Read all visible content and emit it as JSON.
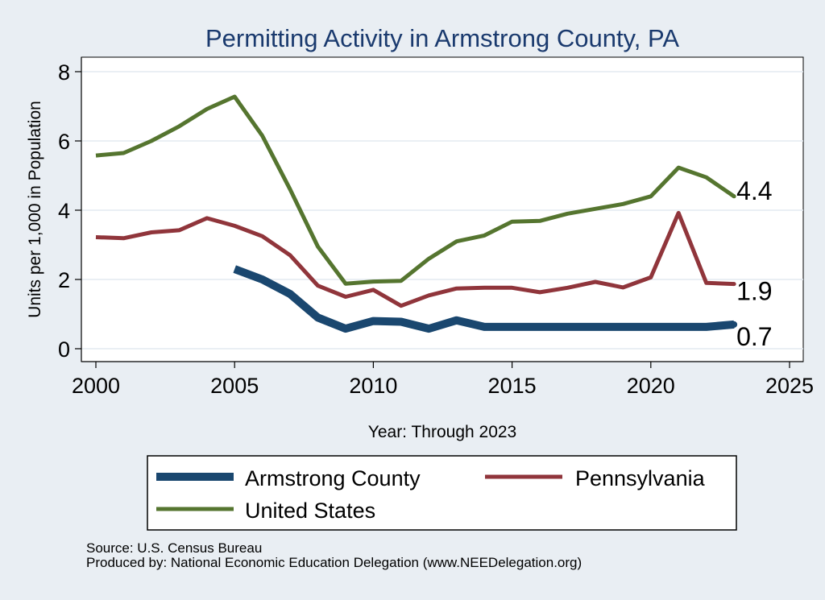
{
  "chart_data": {
    "type": "line",
    "title": "Permitting Activity in Armstrong County, PA",
    "xlabel": "Year: Through 2023",
    "ylabel": "Units per 1,000 in Population",
    "xlim": [
      2000,
      2025
    ],
    "ylim": [
      0,
      8
    ],
    "xticks": [
      2000,
      2005,
      2010,
      2015,
      2020,
      2025
    ],
    "yticks": [
      0,
      2,
      4,
      6,
      8
    ],
    "grid": true,
    "legend_position": "bottom",
    "series": [
      {
        "name": "Armstrong County",
        "color": "#1a476f",
        "x": [
          2005,
          2006,
          2007,
          2008,
          2009,
          2010,
          2011,
          2012,
          2013,
          2014,
          2015,
          2016,
          2017,
          2018,
          2019,
          2020,
          2021,
          2022,
          2023
        ],
        "values": [
          2.3,
          2.0,
          1.58,
          0.9,
          0.58,
          0.8,
          0.78,
          0.58,
          0.82,
          0.63,
          0.63,
          0.63,
          0.63,
          0.63,
          0.63,
          0.63,
          0.63,
          0.63,
          0.7
        ],
        "end_label": "0.7"
      },
      {
        "name": "Pennsylvania",
        "color": "#90353b",
        "x": [
          2000,
          2001,
          2002,
          2003,
          2004,
          2005,
          2006,
          2007,
          2008,
          2009,
          2010,
          2011,
          2012,
          2013,
          2014,
          2015,
          2016,
          2017,
          2018,
          2019,
          2020,
          2021,
          2022,
          2023
        ],
        "values": [
          3.22,
          3.19,
          3.36,
          3.42,
          3.77,
          3.55,
          3.25,
          2.7,
          1.82,
          1.5,
          1.7,
          1.24,
          1.54,
          1.74,
          1.76,
          1.76,
          1.63,
          1.76,
          1.93,
          1.77,
          2.06,
          3.92,
          1.9,
          1.87
        ],
        "end_label": "1.9"
      },
      {
        "name": "United States",
        "color": "#55752f",
        "x": [
          2000,
          2001,
          2002,
          2003,
          2004,
          2005,
          2006,
          2007,
          2008,
          2009,
          2010,
          2011,
          2012,
          2013,
          2014,
          2015,
          2016,
          2017,
          2018,
          2019,
          2020,
          2021,
          2022,
          2023
        ],
        "values": [
          5.58,
          5.65,
          6.0,
          6.42,
          6.92,
          7.28,
          6.15,
          4.6,
          2.95,
          1.88,
          1.94,
          1.96,
          2.6,
          3.1,
          3.27,
          3.67,
          3.69,
          3.9,
          4.04,
          4.18,
          4.4,
          5.23,
          4.95,
          4.4
        ],
        "end_label": "4.4"
      }
    ]
  },
  "footer": {
    "source": "Source: U.S. Census Bureau",
    "produced_by": "Produced by: National Economic Education Delegation (www.NEEDelegation.org)"
  }
}
